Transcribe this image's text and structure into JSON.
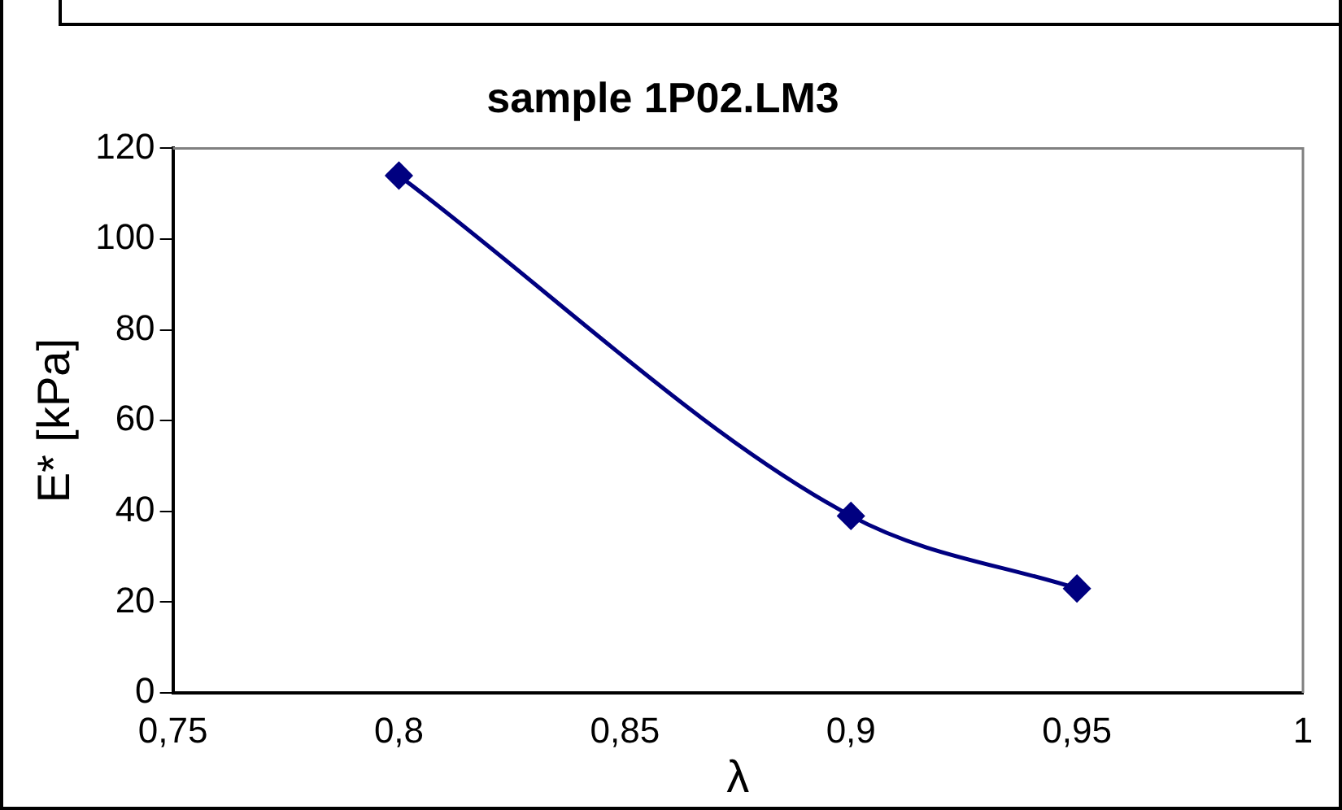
{
  "chart_data": {
    "type": "line",
    "title": "sample 1P02.LM3",
    "xlabel": "λ",
    "ylabel": "E* [kPa]",
    "x": [
      0.8,
      0.9,
      0.95
    ],
    "series": [
      {
        "color": "#000080",
        "values": [
          114,
          39,
          23
        ]
      }
    ],
    "xlim": [
      0.75,
      1
    ],
    "xticks": [
      {
        "value": 0.75,
        "label": "0,75"
      },
      {
        "value": 0.8,
        "label": "0,8"
      },
      {
        "value": 0.85,
        "label": "0,85"
      },
      {
        "value": 0.9,
        "label": "0,9"
      },
      {
        "value": 0.95,
        "label": "0,95"
      },
      {
        "value": 1,
        "label": "1"
      }
    ],
    "ylim": [
      0,
      120
    ],
    "yticks": [
      0,
      20,
      40,
      60,
      80,
      100,
      120
    ],
    "marker": "diamond",
    "line_style": "solid"
  }
}
